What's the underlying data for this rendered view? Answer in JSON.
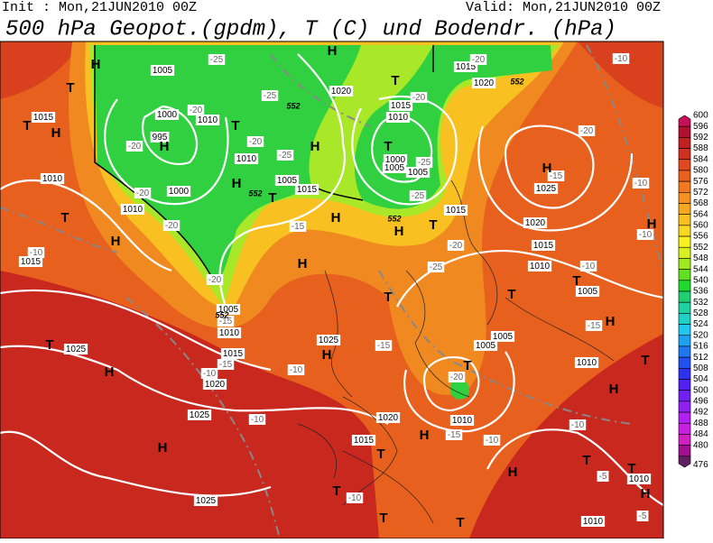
{
  "header": {
    "init": "Init : Mon,21JUN2010 00Z",
    "valid": "Valid: Mon,21JUN2010 00Z",
    "title": "500 hPa Geopot.(gpdm), T (C) und Bodendr. (hPa)"
  },
  "colorbar": {
    "ticks": [
      600,
      596,
      592,
      588,
      584,
      580,
      576,
      572,
      568,
      564,
      560,
      556,
      552,
      548,
      544,
      540,
      536,
      532,
      528,
      524,
      520,
      516,
      512,
      508,
      504,
      500,
      496,
      492,
      488,
      484,
      480,
      476
    ],
    "colors": [
      "#c8105a",
      "#b01030",
      "#c02020",
      "#d03020",
      "#e04820",
      "#e86020",
      "#f07820",
      "#f89020",
      "#f8a820",
      "#f8c020",
      "#f8d820",
      "#f8f020",
      "#d8f020",
      "#a0e820",
      "#60e020",
      "#20d830",
      "#20d070",
      "#20d0a0",
      "#20d0c8",
      "#20c8f0",
      "#20a0f0",
      "#2078f0",
      "#2050f0",
      "#3030f0",
      "#5020f0",
      "#7020f0",
      "#9020f0",
      "#b020f0",
      "#c820e0",
      "#d020c0",
      "#a01090",
      "#602060"
    ]
  },
  "map": {
    "pressure_labels": [
      1005,
      1000,
      995,
      1010,
      1010,
      1005,
      1015,
      1000,
      1010,
      1015,
      1010,
      1015,
      1020,
      1015,
      1010,
      1000,
      1005,
      1005,
      1015,
      1020,
      1015,
      1010,
      1005,
      1005,
      1010,
      1015,
      1020,
      1025,
      1025,
      1025,
      1025,
      1020,
      1015,
      1010,
      1005,
      1005,
      1010,
      1025,
      1015,
      1020,
      1010,
      1010
    ],
    "temperature_labels": [
      -25,
      -20,
      -25,
      -20,
      -25,
      -20,
      -20,
      -20,
      -20,
      -15,
      -15,
      -10,
      -20,
      -25,
      -25,
      -20,
      -25,
      -15,
      -10,
      -10,
      -15,
      -10,
      -20,
      -15,
      -10,
      -10,
      -5,
      -10,
      -5,
      -15,
      -20,
      -10,
      -10,
      -10,
      -15,
      -10,
      -20
    ],
    "centers": [
      "H",
      "T",
      "T",
      "H",
      "H",
      "T",
      "H",
      "T",
      "H",
      "H",
      "T",
      "T",
      "H",
      "H",
      "T",
      "H",
      "H",
      "T",
      "H",
      "H",
      "T",
      "T",
      "H",
      "T",
      "H",
      "H",
      "H",
      "T",
      "T",
      "H",
      "T",
      "H",
      "T",
      "T",
      "H",
      "T",
      "H",
      "T",
      "T",
      "T"
    ],
    "geopotential_labels": [
      552,
      552,
      552,
      552,
      552
    ]
  }
}
